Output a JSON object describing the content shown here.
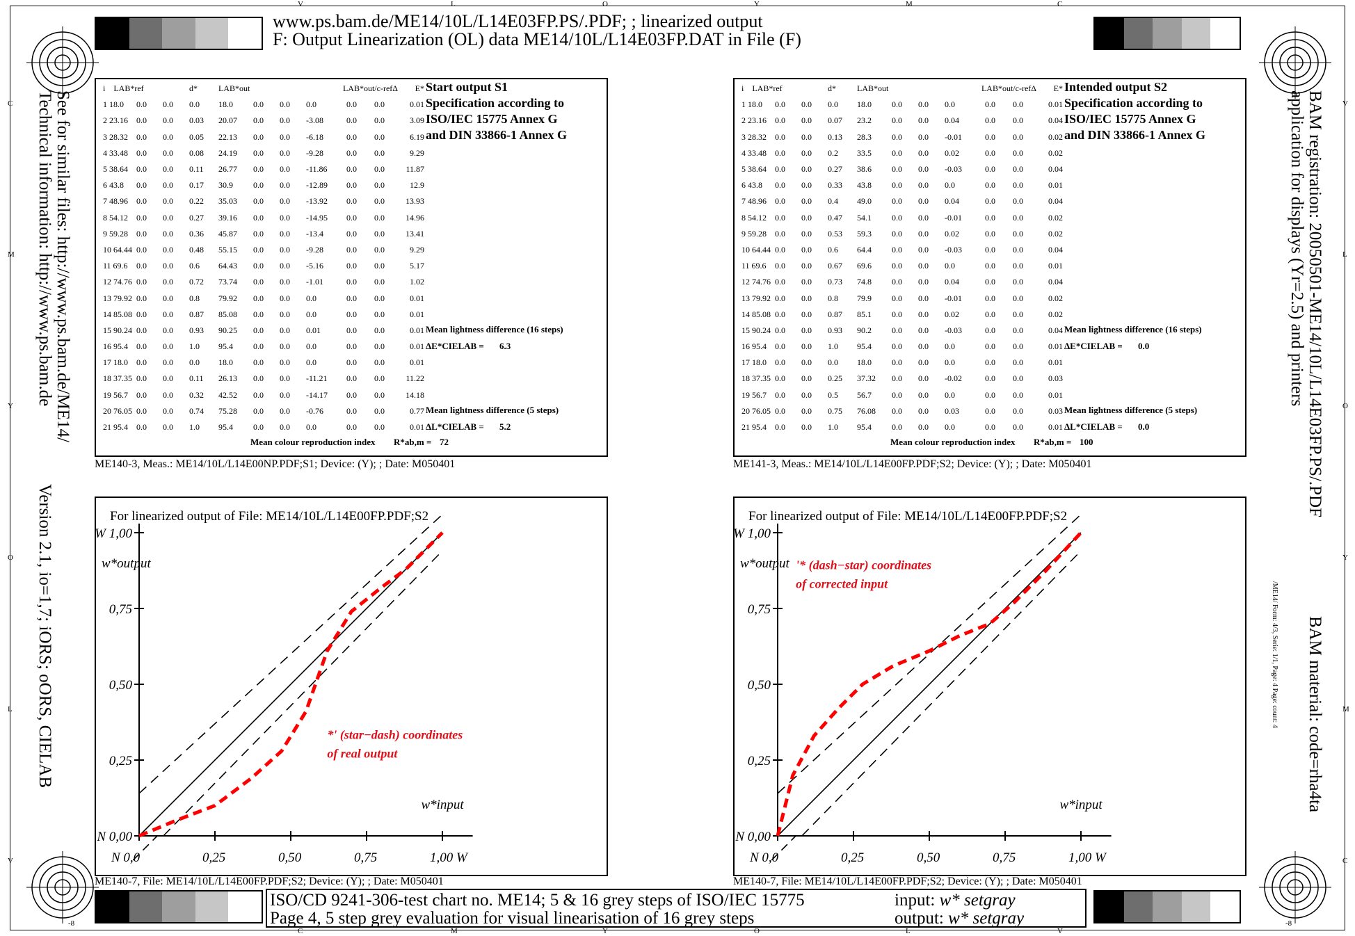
{
  "header": {
    "line1": "www.ps.bam.de/ME14/10L/L14E03FP.PS/.PDF; ; linearized output",
    "line2": "F: Output Linearization (OL) data ME14/10L/L14E03FP.DAT in File (F)"
  },
  "footer": {
    "line1": "ISO/CD 9241-306-test chart no. ME14; 5 & 16 grey steps of ISO/IEC 15775",
    "line2": "Page 4, 5 step grey evaluation for visual linearisation of 16 grey steps",
    "input_label": "input: ",
    "input_value": "w* setgray",
    "output_label": "output: ",
    "output_value": "w* setgray"
  },
  "side_left": {
    "line1": "See for similar files: http://www.ps.bam.de/ME14/",
    "line2": "Technical information: http://www.ps.bam.de",
    "line3": "Version 2.1, io=1,7; iORS; oORS, CIELAB"
  },
  "side_right": {
    "line1": "BAM registration: 20050501-ME14/10L/L14E03FP.PS/.PDF",
    "line2": "application for displays (Yr=2.5) and printers",
    "line3": "BAM material: code=rha4ta",
    "small": "/ME14/  Form: 4/3,  Serie: 1/1,  Page: 4     Page: count: 4"
  },
  "edge_letters": {
    "top": [
      "V",
      "L",
      "O",
      "Y",
      "M",
      "C"
    ],
    "bottom": [
      "C",
      "M",
      "Y",
      "O",
      "L",
      "V"
    ],
    "left": [
      "C",
      "M",
      "Y",
      "O",
      "L",
      "V"
    ],
    "right": [
      "V",
      "L",
      "O",
      "Y",
      "M",
      "C"
    ],
    "corner": "-8"
  },
  "table_headers": [
    "i",
    "LAB*ref",
    "d*",
    "LAB*out",
    "LAB*out/c-refΔ",
    "E*"
  ],
  "table_left": {
    "title1": "Start output S1",
    "title2": "Specification according to",
    "title3": "ISO/IEC 15775 Annex G",
    "title4": "and DIN 33866-1 Annex G",
    "mean16_label": "Mean lightness difference (16 steps)",
    "mean16_sym": "ΔE*CIELAB =",
    "mean16_value": "6.3",
    "mean5_label": "Mean lightness difference (5 steps)",
    "mean5_sym": "ΔL*CIELAB =",
    "mean5_value": "5.2",
    "index_label": "Mean colour reproduction index",
    "index_sym": "R*ab,m =",
    "index_value": "72",
    "rows": [
      [
        "1 18.0",
        "0.0",
        "0.0",
        "0.0",
        "18.0",
        "0.0",
        "0.0",
        "0.0",
        "0.0",
        "0.0",
        "0.01"
      ],
      [
        "2 23.16",
        "0.0",
        "0.0",
        "0.03",
        "20.07",
        "0.0",
        "0.0",
        "-3.08",
        "0.0",
        "0.0",
        "3.09"
      ],
      [
        "3 28.32",
        "0.0",
        "0.0",
        "0.05",
        "22.13",
        "0.0",
        "0.0",
        "-6.18",
        "0.0",
        "0.0",
        "6.19"
      ],
      [
        "4 33.48",
        "0.0",
        "0.0",
        "0.08",
        "24.19",
        "0.0",
        "0.0",
        "-9.28",
        "0.0",
        "0.0",
        "9.29"
      ],
      [
        "5 38.64",
        "0.0",
        "0.0",
        "0.11",
        "26.77",
        "0.0",
        "0.0",
        "-11.86",
        "0.0",
        "0.0",
        "11.87"
      ],
      [
        "6 43.8",
        "0.0",
        "0.0",
        "0.17",
        "30.9",
        "0.0",
        "0.0",
        "-12.89",
        "0.0",
        "0.0",
        "12.9"
      ],
      [
        "7 48.96",
        "0.0",
        "0.0",
        "0.22",
        "35.03",
        "0.0",
        "0.0",
        "-13.92",
        "0.0",
        "0.0",
        "13.93"
      ],
      [
        "8 54.12",
        "0.0",
        "0.0",
        "0.27",
        "39.16",
        "0.0",
        "0.0",
        "-14.95",
        "0.0",
        "0.0",
        "14.96"
      ],
      [
        "9 59.28",
        "0.0",
        "0.0",
        "0.36",
        "45.87",
        "0.0",
        "0.0",
        "-13.4",
        "0.0",
        "0.0",
        "13.41"
      ],
      [
        "10 64.44",
        "0.0",
        "0.0",
        "0.48",
        "55.15",
        "0.0",
        "0.0",
        "-9.28",
        "0.0",
        "0.0",
        "9.29"
      ],
      [
        "11 69.6",
        "0.0",
        "0.0",
        "0.6",
        "64.43",
        "0.0",
        "0.0",
        "-5.16",
        "0.0",
        "0.0",
        "5.17"
      ],
      [
        "12 74.76",
        "0.0",
        "0.0",
        "0.72",
        "73.74",
        "0.0",
        "0.0",
        "-1.01",
        "0.0",
        "0.0",
        "1.02"
      ],
      [
        "13 79.92",
        "0.0",
        "0.0",
        "0.8",
        "79.92",
        "0.0",
        "0.0",
        "0.0",
        "0.0",
        "0.0",
        "0.01"
      ],
      [
        "14 85.08",
        "0.0",
        "0.0",
        "0.87",
        "85.08",
        "0.0",
        "0.0",
        "0.0",
        "0.0",
        "0.0",
        "0.01"
      ],
      [
        "15 90.24",
        "0.0",
        "0.0",
        "0.93",
        "90.25",
        "0.0",
        "0.0",
        "0.01",
        "0.0",
        "0.0",
        "0.01"
      ],
      [
        "16 95.4",
        "0.0",
        "0.0",
        "1.0",
        "95.4",
        "0.0",
        "0.0",
        "0.0",
        "0.0",
        "0.0",
        "0.01"
      ],
      [
        "17 18.0",
        "0.0",
        "0.0",
        "0.0",
        "18.0",
        "0.0",
        "0.0",
        "0.0",
        "0.0",
        "0.0",
        "0.01"
      ],
      [
        "18 37.35",
        "0.0",
        "0.0",
        "0.11",
        "26.13",
        "0.0",
        "0.0",
        "-11.21",
        "0.0",
        "0.0",
        "11.22"
      ],
      [
        "19 56.7",
        "0.0",
        "0.0",
        "0.32",
        "42.52",
        "0.0",
        "0.0",
        "-14.17",
        "0.0",
        "0.0",
        "14.18"
      ],
      [
        "20 76.05",
        "0.0",
        "0.0",
        "0.74",
        "75.28",
        "0.0",
        "0.0",
        "-0.76",
        "0.0",
        "0.0",
        "0.77"
      ],
      [
        "21 95.4",
        "0.0",
        "0.0",
        "1.0",
        "95.4",
        "0.0",
        "0.0",
        "0.0",
        "0.0",
        "0.0",
        "0.01"
      ]
    ]
  },
  "table_right": {
    "title1": "Intended output S2",
    "title2": "Specification according to",
    "title3": "ISO/IEC 15775 Annex G",
    "title4": "and DIN 33866-1 Annex G",
    "mean16_label": "Mean lightness difference (16 steps)",
    "mean16_sym": "ΔE*CIELAB =",
    "mean16_value": "0.0",
    "mean5_label": "Mean lightness difference (5 steps)",
    "mean5_sym": "ΔL*CIELAB =",
    "mean5_value": "0.0",
    "index_label": "Mean colour reproduction index",
    "index_sym": "R*ab,m =",
    "index_value": "100",
    "rows": [
      [
        "1 18.0",
        "0.0",
        "0.0",
        "0.0",
        "18.0",
        "0.0",
        "0.0",
        "0.0",
        "0.0",
        "0.0",
        "0.01"
      ],
      [
        "2 23.16",
        "0.0",
        "0.0",
        "0.07",
        "23.2",
        "0.0",
        "0.0",
        "0.04",
        "0.0",
        "0.0",
        "0.04"
      ],
      [
        "3 28.32",
        "0.0",
        "0.0",
        "0.13",
        "28.3",
        "0.0",
        "0.0",
        "-0.01",
        "0.0",
        "0.0",
        "0.02"
      ],
      [
        "4 33.48",
        "0.0",
        "0.0",
        "0.2",
        "33.5",
        "0.0",
        "0.0",
        "0.02",
        "0.0",
        "0.0",
        "0.02"
      ],
      [
        "5 38.64",
        "0.0",
        "0.0",
        "0.27",
        "38.6",
        "0.0",
        "0.0",
        "-0.03",
        "0.0",
        "0.0",
        "0.04"
      ],
      [
        "6 43.8",
        "0.0",
        "0.0",
        "0.33",
        "43.8",
        "0.0",
        "0.0",
        "0.0",
        "0.0",
        "0.0",
        "0.01"
      ],
      [
        "7 48.96",
        "0.0",
        "0.0",
        "0.4",
        "49.0",
        "0.0",
        "0.0",
        "0.04",
        "0.0",
        "0.0",
        "0.04"
      ],
      [
        "8 54.12",
        "0.0",
        "0.0",
        "0.47",
        "54.1",
        "0.0",
        "0.0",
        "-0.01",
        "0.0",
        "0.0",
        "0.02"
      ],
      [
        "9 59.28",
        "0.0",
        "0.0",
        "0.53",
        "59.3",
        "0.0",
        "0.0",
        "0.02",
        "0.0",
        "0.0",
        "0.02"
      ],
      [
        "10 64.44",
        "0.0",
        "0.0",
        "0.6",
        "64.4",
        "0.0",
        "0.0",
        "-0.03",
        "0.0",
        "0.0",
        "0.04"
      ],
      [
        "11 69.6",
        "0.0",
        "0.0",
        "0.67",
        "69.6",
        "0.0",
        "0.0",
        "0.0",
        "0.0",
        "0.0",
        "0.01"
      ],
      [
        "12 74.76",
        "0.0",
        "0.0",
        "0.73",
        "74.8",
        "0.0",
        "0.0",
        "0.04",
        "0.0",
        "0.0",
        "0.04"
      ],
      [
        "13 79.92",
        "0.0",
        "0.0",
        "0.8",
        "79.9",
        "0.0",
        "0.0",
        "-0.01",
        "0.0",
        "0.0",
        "0.02"
      ],
      [
        "14 85.08",
        "0.0",
        "0.0",
        "0.87",
        "85.1",
        "0.0",
        "0.0",
        "0.02",
        "0.0",
        "0.0",
        "0.02"
      ],
      [
        "15 90.24",
        "0.0",
        "0.0",
        "0.93",
        "90.2",
        "0.0",
        "0.0",
        "-0.03",
        "0.0",
        "0.0",
        "0.04"
      ],
      [
        "16 95.4",
        "0.0",
        "0.0",
        "1.0",
        "95.4",
        "0.0",
        "0.0",
        "0.0",
        "0.0",
        "0.0",
        "0.01"
      ],
      [
        "17 18.0",
        "0.0",
        "0.0",
        "0.0",
        "18.0",
        "0.0",
        "0.0",
        "0.0",
        "0.0",
        "0.0",
        "0.01"
      ],
      [
        "18 37.35",
        "0.0",
        "0.0",
        "0.25",
        "37.32",
        "0.0",
        "0.0",
        "-0.02",
        "0.0",
        "0.0",
        "0.03"
      ],
      [
        "19 56.7",
        "0.0",
        "0.0",
        "0.5",
        "56.7",
        "0.0",
        "0.0",
        "0.0",
        "0.0",
        "0.0",
        "0.01"
      ],
      [
        "20 76.05",
        "0.0",
        "0.0",
        "0.75",
        "76.08",
        "0.0",
        "0.0",
        "0.03",
        "0.0",
        "0.0",
        "0.03"
      ],
      [
        "21 95.4",
        "0.0",
        "0.0",
        "1.0",
        "95.4",
        "0.0",
        "0.0",
        "0.0",
        "0.0",
        "0.0",
        "0.01"
      ]
    ]
  },
  "captions": {
    "table_left": "ME140-3, Meas.: ME14/10L/L14E00NP.PDF;S1; Device: (Y); ; Date: M050401",
    "table_right": "ME141-3, Meas.: ME14/10L/L14E00FP.PDF;S2; Device: (Y); ; Date: M050401",
    "chart_left": "ME140-7, File: ME14/10L/L14E00FP.PDF;S2; Device: (Y); ; Date: M050401",
    "chart_right": "ME140-7, File: ME14/10L/L14E00FP.PDF;S2; Device: (Y); ; Date: M050401"
  },
  "colors": {
    "curve": "#ff0000",
    "annotation": "#e0101a"
  },
  "chart_data": [
    {
      "type": "line",
      "title": "For linearized output of File: ME14/10L/L14E00FP.PDF;S2",
      "xlabel": "w*input",
      "ylabel": "w*output",
      "xlim": [
        0,
        1
      ],
      "ylim": [
        0,
        1
      ],
      "x_ticks": [
        "N 0,0",
        "0,25",
        "0,50",
        "0,75",
        "1,00  W"
      ],
      "y_ticks": [
        "N 0,00",
        "0,25",
        "0,50",
        "0,75",
        "W 1,00"
      ],
      "annotation": [
        "*' (star−dash) coordinates",
        "of real output"
      ],
      "reference_lines": {
        "identity": [
          [
            0,
            0
          ],
          [
            1,
            1
          ]
        ],
        "upper": [
          [
            0,
            0.14
          ],
          [
            1,
            1.06
          ]
        ],
        "lower": [
          [
            0.08,
            0
          ],
          [
            1,
            0.94
          ]
        ]
      },
      "series": [
        {
          "x": [
            0,
            0.12,
            0.25,
            0.37,
            0.47,
            0.55,
            0.62,
            0.7,
            0.8,
            0.88,
            0.93,
            1.0
          ],
          "y": [
            0,
            0.05,
            0.1,
            0.19,
            0.28,
            0.41,
            0.61,
            0.74,
            0.82,
            0.88,
            0.93,
            1.0
          ]
        }
      ]
    },
    {
      "type": "line",
      "title": "For linearized output of File: ME14/10L/L14E00FP.PDF;S2",
      "xlabel": "w*input",
      "ylabel": "w*output",
      "xlim": [
        0,
        1
      ],
      "ylim": [
        0,
        1
      ],
      "x_ticks": [
        "N 0,0",
        "0,25",
        "0,50",
        "0,75",
        "1,00  W"
      ],
      "y_ticks": [
        "N 0,00",
        "0,25",
        "0,50",
        "0,75",
        "W 1,00"
      ],
      "annotation": [
        "'* (dash−star) coordinates",
        "of corrected input"
      ],
      "reference_lines": {
        "identity": [
          [
            0,
            0
          ],
          [
            1,
            1
          ]
        ],
        "upper": [
          [
            0,
            0.14
          ],
          [
            1,
            1.06
          ]
        ],
        "lower": [
          [
            0.08,
            0
          ],
          [
            1,
            0.94
          ]
        ]
      },
      "series": [
        {
          "x": [
            0,
            0.05,
            0.12,
            0.2,
            0.28,
            0.38,
            0.5,
            0.6,
            0.7,
            0.78,
            0.88,
            1.0
          ],
          "y": [
            0,
            0.2,
            0.33,
            0.42,
            0.5,
            0.56,
            0.61,
            0.66,
            0.7,
            0.77,
            0.87,
            1.0
          ]
        }
      ]
    }
  ]
}
